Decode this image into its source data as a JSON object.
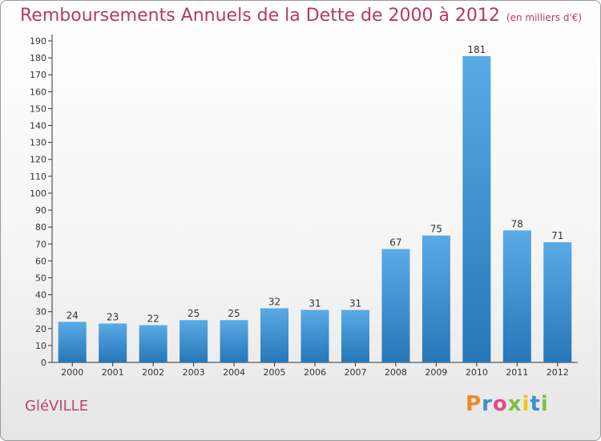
{
  "title": "Remboursements Annuels de la Dette de 2000 à 2012",
  "unit": "(en milliers d'€)",
  "commune": "GléVILLE",
  "logo": "Proxiti",
  "colors": {
    "bar_light": "#5aaae6",
    "bar_dark": "#2677b8",
    "title": "#b5386a",
    "axis": "#333333"
  },
  "chart_data": {
    "type": "bar",
    "categories": [
      "2000",
      "2001",
      "2002",
      "2003",
      "2004",
      "2005",
      "2006",
      "2007",
      "2008",
      "2009",
      "2010",
      "2011",
      "2012"
    ],
    "values": [
      24,
      23,
      22,
      25,
      25,
      32,
      31,
      31,
      67,
      75,
      181,
      78,
      71
    ],
    "ylim": [
      0,
      190
    ],
    "ytick_step": 10,
    "grid": false
  }
}
